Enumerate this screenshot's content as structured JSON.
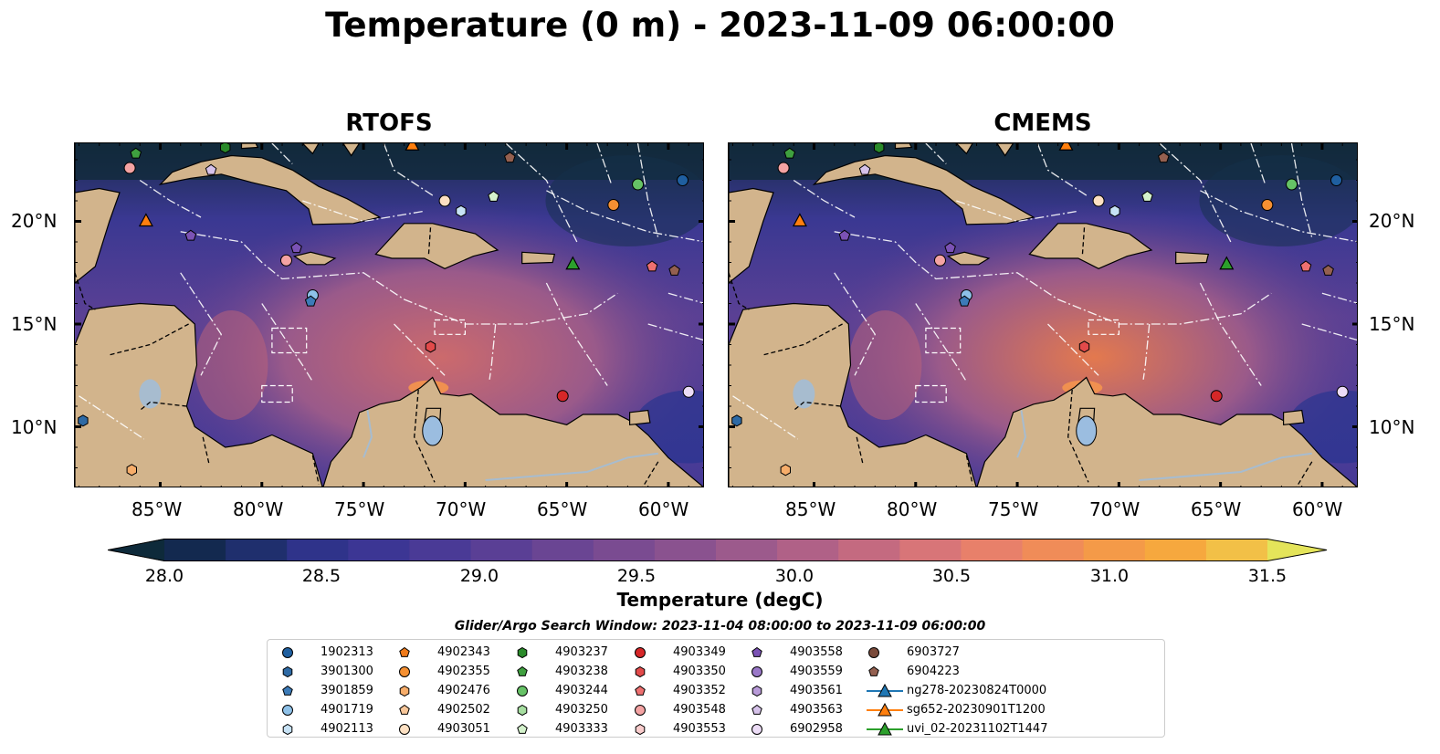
{
  "title": "Temperature (0 m) - 2023-11-09 06:00:00",
  "panels": [
    {
      "title": "RTOFS"
    },
    {
      "title": "CMEMS"
    }
  ],
  "axes": {
    "x_ticks": [
      "85°W",
      "80°W",
      "75°W",
      "70°W",
      "65°W",
      "60°W"
    ],
    "y_ticks": [
      "20°N",
      "15°N",
      "10°N"
    ],
    "lon_range": [
      -89.2,
      -58.2
    ],
    "lat_range": [
      7.0,
      23.8
    ]
  },
  "colorbar": {
    "label": "Temperature (degC)",
    "ticks": [
      "28.0",
      "28.5",
      "29.0",
      "29.5",
      "30.0",
      "30.5",
      "31.0",
      "31.5"
    ],
    "range": [
      28.0,
      31.5
    ],
    "colors": [
      "#0e2a3a",
      "#13294f",
      "#1f2f6d",
      "#2f338a",
      "#3c3694",
      "#4a3a96",
      "#5a3f95",
      "#6a4593",
      "#7a4b91",
      "#8a528f",
      "#9c5a8c",
      "#b06187",
      "#c46a80",
      "#d87578",
      "#e8806a",
      "#f08c58",
      "#f49a48",
      "#f6a83e",
      "#f2c047",
      "#e4e45a"
    ]
  },
  "search_window": "Glider/Argo Search Window: 2023-11-04 08:00:00 to 2023-11-09 06:00:00",
  "legend": [
    {
      "label": "1902313",
      "marker": "circle",
      "color": "#1f5fa0"
    },
    {
      "label": "3901300",
      "marker": "hexagon",
      "color": "#2e6aa5"
    },
    {
      "label": "3901859",
      "marker": "pentagon",
      "color": "#3c7bb8"
    },
    {
      "label": "4901719",
      "marker": "circle",
      "color": "#8ec1e8"
    },
    {
      "label": "4902113",
      "marker": "hexagon",
      "color": "#c7e2f5"
    },
    {
      "label": "4902343",
      "marker": "pentagon",
      "color": "#f07a1a"
    },
    {
      "label": "4902355",
      "marker": "circle",
      "color": "#f59032"
    },
    {
      "label": "4902476",
      "marker": "hexagon",
      "color": "#f7ad6a"
    },
    {
      "label": "4902502",
      "marker": "pentagon",
      "color": "#f8c79a"
    },
    {
      "label": "4903051",
      "marker": "circle",
      "color": "#fde0c2"
    },
    {
      "label": "4903237",
      "marker": "hexagon",
      "color": "#2a8a2a"
    },
    {
      "label": "4903238",
      "marker": "pentagon",
      "color": "#3fa03f"
    },
    {
      "label": "4903244",
      "marker": "circle",
      "color": "#66c266"
    },
    {
      "label": "4903250",
      "marker": "hexagon",
      "color": "#a6dea0"
    },
    {
      "label": "4903333",
      "marker": "pentagon",
      "color": "#d4f2cc"
    },
    {
      "label": "4903349",
      "marker": "circle",
      "color": "#d62728"
    },
    {
      "label": "4903350",
      "marker": "hexagon",
      "color": "#e24a4a"
    },
    {
      "label": "4903352",
      "marker": "pentagon",
      "color": "#ee7070"
    },
    {
      "label": "4903548",
      "marker": "circle",
      "color": "#f4a3a3"
    },
    {
      "label": "4903553",
      "marker": "hexagon",
      "color": "#f9cccc"
    },
    {
      "label": "4903558",
      "marker": "pentagon",
      "color": "#7b52b5"
    },
    {
      "label": "4903559",
      "marker": "circle",
      "color": "#9a78c8"
    },
    {
      "label": "4903561",
      "marker": "hexagon",
      "color": "#b89ad8"
    },
    {
      "label": "4903563",
      "marker": "pentagon",
      "color": "#d6c2ea"
    },
    {
      "label": "6902958",
      "marker": "circle",
      "color": "#ecdcf6"
    },
    {
      "label": "6903727",
      "marker": "circle",
      "color": "#7a4a3a"
    },
    {
      "label": "6904223",
      "marker": "pentagon",
      "color": "#946050"
    },
    {
      "label": "ng278-20230824T0000",
      "marker": "triangle-line",
      "color": "#1f77b4"
    },
    {
      "label": "sg652-20230901T1200",
      "marker": "triangle-line",
      "color": "#ff7f0e"
    },
    {
      "label": "uvi_02-20231102T1447",
      "marker": "triangle-line",
      "color": "#2ca02c"
    }
  ]
}
